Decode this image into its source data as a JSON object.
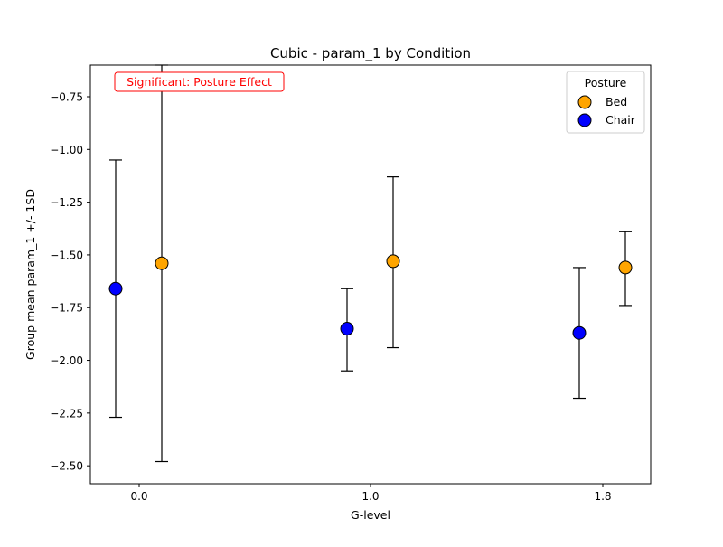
{
  "chart_data": {
    "type": "scatter",
    "title": "Cubic - param_1 by Condition",
    "xlabel": "G-level",
    "ylabel": "Group mean param_1 +/- 1SD",
    "x_ticks": [
      "0.0",
      "1.0",
      "1.8"
    ],
    "y_ticks": [
      "−0.75",
      "−1.00",
      "−1.25",
      "−1.50",
      "−1.75",
      "−2.00",
      "−2.25",
      "−2.50"
    ],
    "y_tick_values": [
      -0.75,
      -1.0,
      -1.25,
      -1.5,
      -1.75,
      -2.0,
      -2.25,
      -2.5
    ],
    "ylim": [
      -2.585,
      -0.6
    ],
    "legend": {
      "title": "Posture",
      "placement": "top-right"
    },
    "annotation": {
      "text": "Significant: Posture Effect",
      "color": "#ff0000"
    },
    "grid": false,
    "series": [
      {
        "name": "Bed",
        "color": "#ffa500",
        "points": [
          {
            "g": "0.0",
            "mean": -1.54,
            "sd_low": -2.48,
            "sd_high": -0.6
          },
          {
            "g": "1.0",
            "mean": -1.53,
            "sd_low": -1.94,
            "sd_high": -1.13
          },
          {
            "g": "1.8",
            "mean": -1.56,
            "sd_low": -1.74,
            "sd_high": -1.39
          }
        ]
      },
      {
        "name": "Chair",
        "color": "#0000ff",
        "points": [
          {
            "g": "0.0",
            "mean": -1.66,
            "sd_low": -2.27,
            "sd_high": -1.05
          },
          {
            "g": "1.0",
            "mean": -1.85,
            "sd_low": -2.05,
            "sd_high": -1.66
          },
          {
            "g": "1.8",
            "mean": -1.87,
            "sd_low": -2.18,
            "sd_high": -1.56
          }
        ]
      }
    ]
  }
}
